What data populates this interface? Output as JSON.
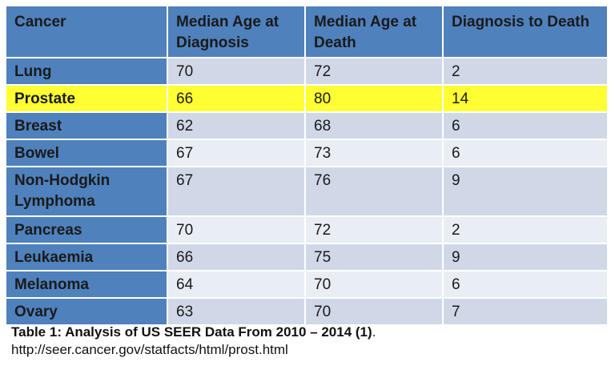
{
  "table": {
    "headers": [
      "Cancer",
      "Median Age at Diagnosis",
      "Median Age at Death",
      "Diagnosis to Death"
    ],
    "rows": [
      {
        "cancer": "Lung",
        "diagnosis": "70",
        "death": "72",
        "interval": "2"
      },
      {
        "cancer": "Prostate",
        "diagnosis": "66",
        "death": "80",
        "interval": "14"
      },
      {
        "cancer": "Breast",
        "diagnosis": "62",
        "death": "68",
        "interval": "6"
      },
      {
        "cancer": "Bowel",
        "diagnosis": "67",
        "death": "73",
        "interval": "6"
      },
      {
        "cancer": "Non-Hodgkin Lymphoma",
        "diagnosis": "67",
        "death": "76",
        "interval": "9"
      },
      {
        "cancer": "Pancreas",
        "diagnosis": "70",
        "death": "72",
        "interval": "2"
      },
      {
        "cancer": "Leukaemia",
        "diagnosis": "66",
        "death": "75",
        "interval": "9"
      },
      {
        "cancer": "Melanoma",
        "diagnosis": "64",
        "death": "70",
        "interval": "6"
      },
      {
        "cancer": "Ovary",
        "diagnosis": "63",
        "death": "70",
        "interval": "7"
      }
    ]
  },
  "caption": {
    "title": "Table 1: Analysis of US SEER Data From 2010 – 2014 (1)",
    "title_suffix": ".",
    "url": "http://seer.cancer.gov/statfacts/html/prost.html"
  },
  "colors": {
    "header_bg": "#4f81bd",
    "first_col_bg": "#4f81bd",
    "cell_bg": "#d0d8e8",
    "cell_alt_bg": "#e9edf4",
    "highlight": "#ffff33"
  }
}
